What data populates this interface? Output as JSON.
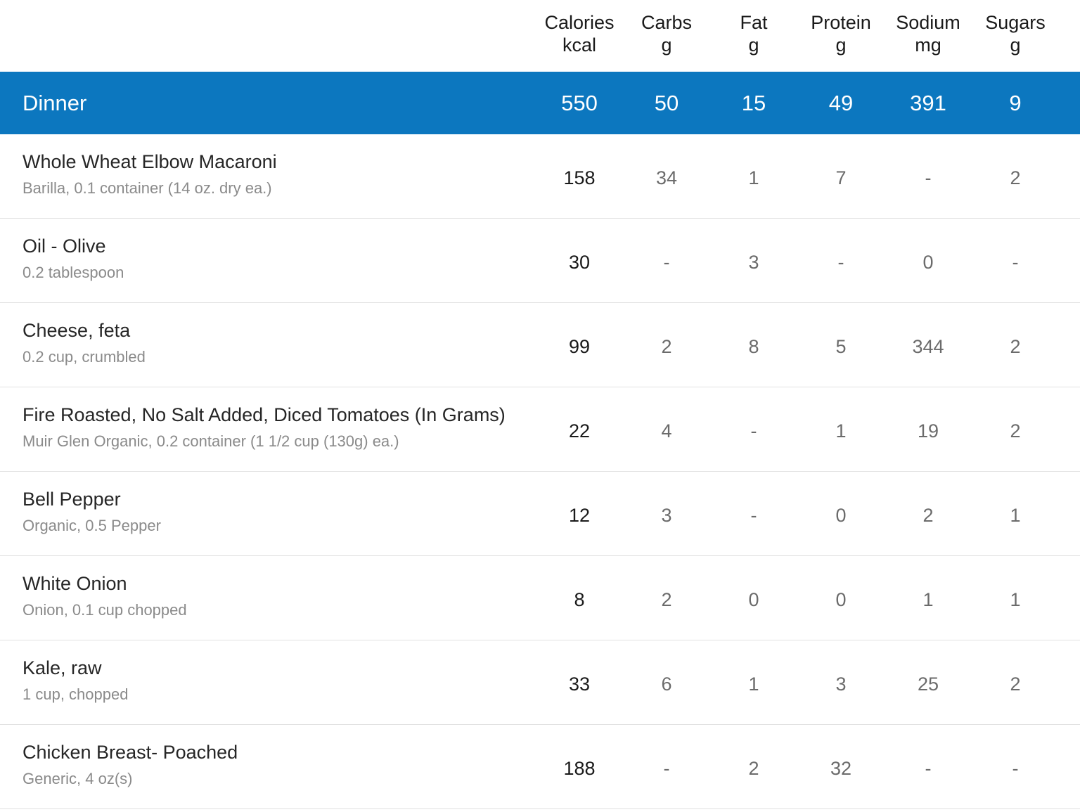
{
  "columns": [
    {
      "name": "Calories",
      "unit": "kcal"
    },
    {
      "name": "Carbs",
      "unit": "g"
    },
    {
      "name": "Fat",
      "unit": "g"
    },
    {
      "name": "Protein",
      "unit": "g"
    },
    {
      "name": "Sodium",
      "unit": "mg"
    },
    {
      "name": "Sugars",
      "unit": "g"
    }
  ],
  "meal": {
    "name": "Dinner",
    "totals": [
      "550",
      "50",
      "15",
      "49",
      "391",
      "9"
    ],
    "accent_color": "#0c77bf"
  },
  "foods": [
    {
      "name": "Whole Wheat Elbow Macaroni",
      "desc": "Barilla, 0.1 container (14 oz. dry ea.)",
      "values": [
        "158",
        "34",
        "1",
        "7",
        "-",
        "2"
      ]
    },
    {
      "name": "Oil - Olive",
      "desc": "0.2 tablespoon",
      "values": [
        "30",
        "-",
        "3",
        "-",
        "0",
        "-"
      ]
    },
    {
      "name": "Cheese, feta",
      "desc": "0.2 cup, crumbled",
      "values": [
        "99",
        "2",
        "8",
        "5",
        "344",
        "2"
      ]
    },
    {
      "name": "Fire Roasted, No Salt Added, Diced Tomatoes (In Grams)",
      "desc": "Muir Glen Organic, 0.2 container (1 1/2 cup (130g) ea.)",
      "values": [
        "22",
        "4",
        "-",
        "1",
        "19",
        "2"
      ]
    },
    {
      "name": "Bell Pepper",
      "desc": "Organic, 0.5 Pepper",
      "values": [
        "12",
        "3",
        "-",
        "0",
        "2",
        "1"
      ]
    },
    {
      "name": "White Onion",
      "desc": "Onion, 0.1 cup chopped",
      "values": [
        "8",
        "2",
        "0",
        "0",
        "1",
        "1"
      ]
    },
    {
      "name": "Kale, raw",
      "desc": "1 cup, chopped",
      "values": [
        "33",
        "6",
        "1",
        "3",
        "25",
        "2"
      ]
    },
    {
      "name": "Chicken Breast- Poached",
      "desc": "Generic, 4 oz(s)",
      "values": [
        "188",
        "-",
        "2",
        "32",
        "-",
        "-"
      ]
    }
  ]
}
